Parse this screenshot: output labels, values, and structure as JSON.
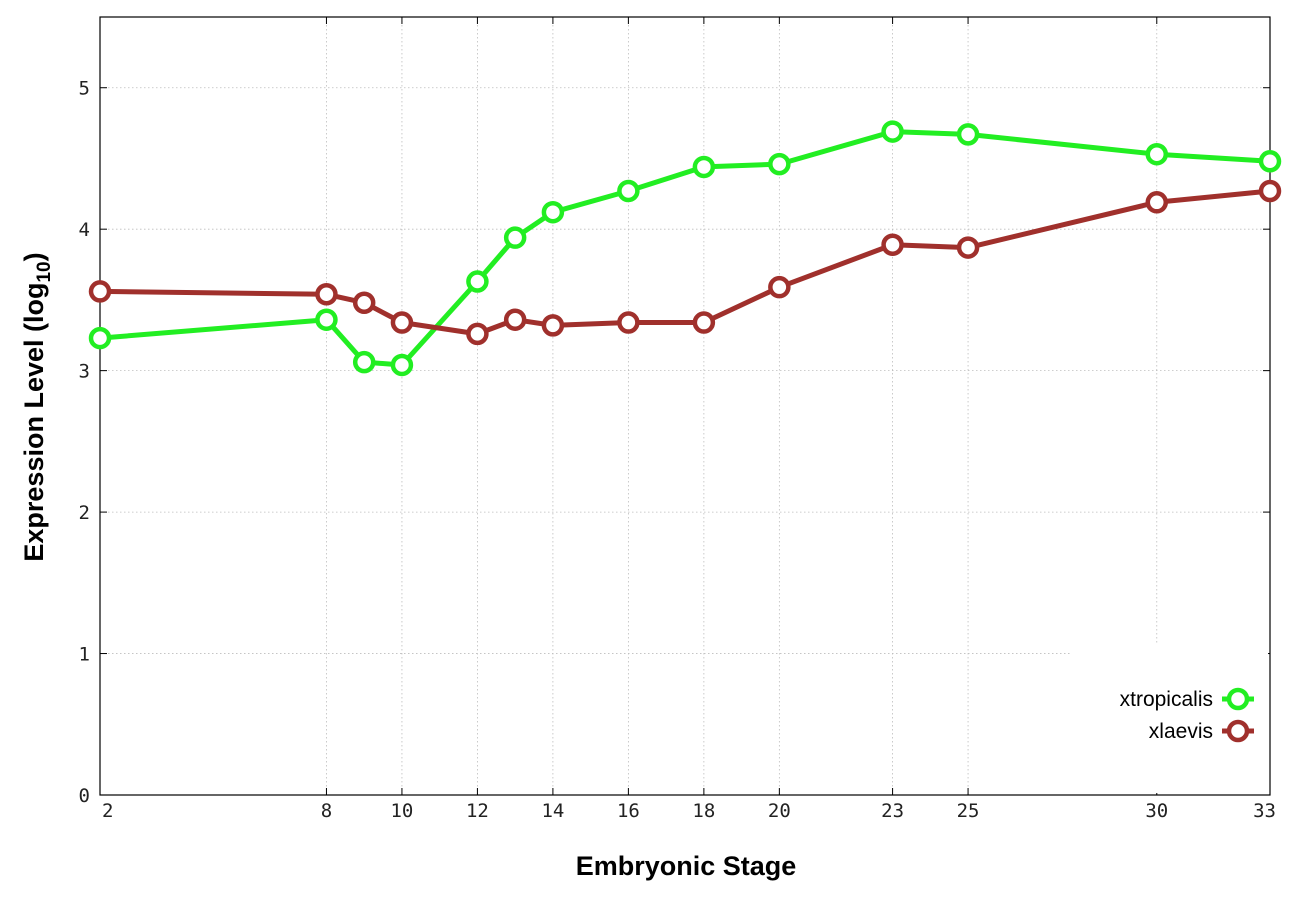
{
  "chart_data": {
    "type": "line",
    "xlabel": "Embryonic Stage",
    "ylabel_main": "Expression Level (log",
    "ylabel_sub": "10",
    "ylabel_close": ")",
    "x_ticks": [
      "2",
      "8",
      "10",
      "12",
      "14",
      "16",
      "18",
      "20",
      "23",
      "25",
      "30",
      "33"
    ],
    "y_ticks": [
      "0",
      "1",
      "2",
      "3",
      "4",
      "5"
    ],
    "ylim": [
      0,
      5.5
    ],
    "grid": true,
    "legend_position": "bottom-right",
    "categories": [
      "2",
      "8",
      "9",
      "10",
      "12",
      "13",
      "14",
      "16",
      "18",
      "20",
      "23",
      "25",
      "30",
      "33"
    ],
    "series": [
      {
        "name": "xtropicalis",
        "color": "#22ee22",
        "values": [
          3.23,
          3.36,
          3.06,
          3.04,
          3.63,
          3.94,
          4.12,
          4.27,
          4.44,
          4.46,
          4.69,
          4.67,
          4.53,
          4.48
        ]
      },
      {
        "name": "xlaevis",
        "color": "#a0302c",
        "values": [
          3.56,
          3.54,
          3.48,
          3.34,
          3.26,
          3.36,
          3.32,
          3.34,
          3.34,
          3.59,
          3.89,
          3.87,
          4.19,
          4.27
        ]
      }
    ]
  }
}
